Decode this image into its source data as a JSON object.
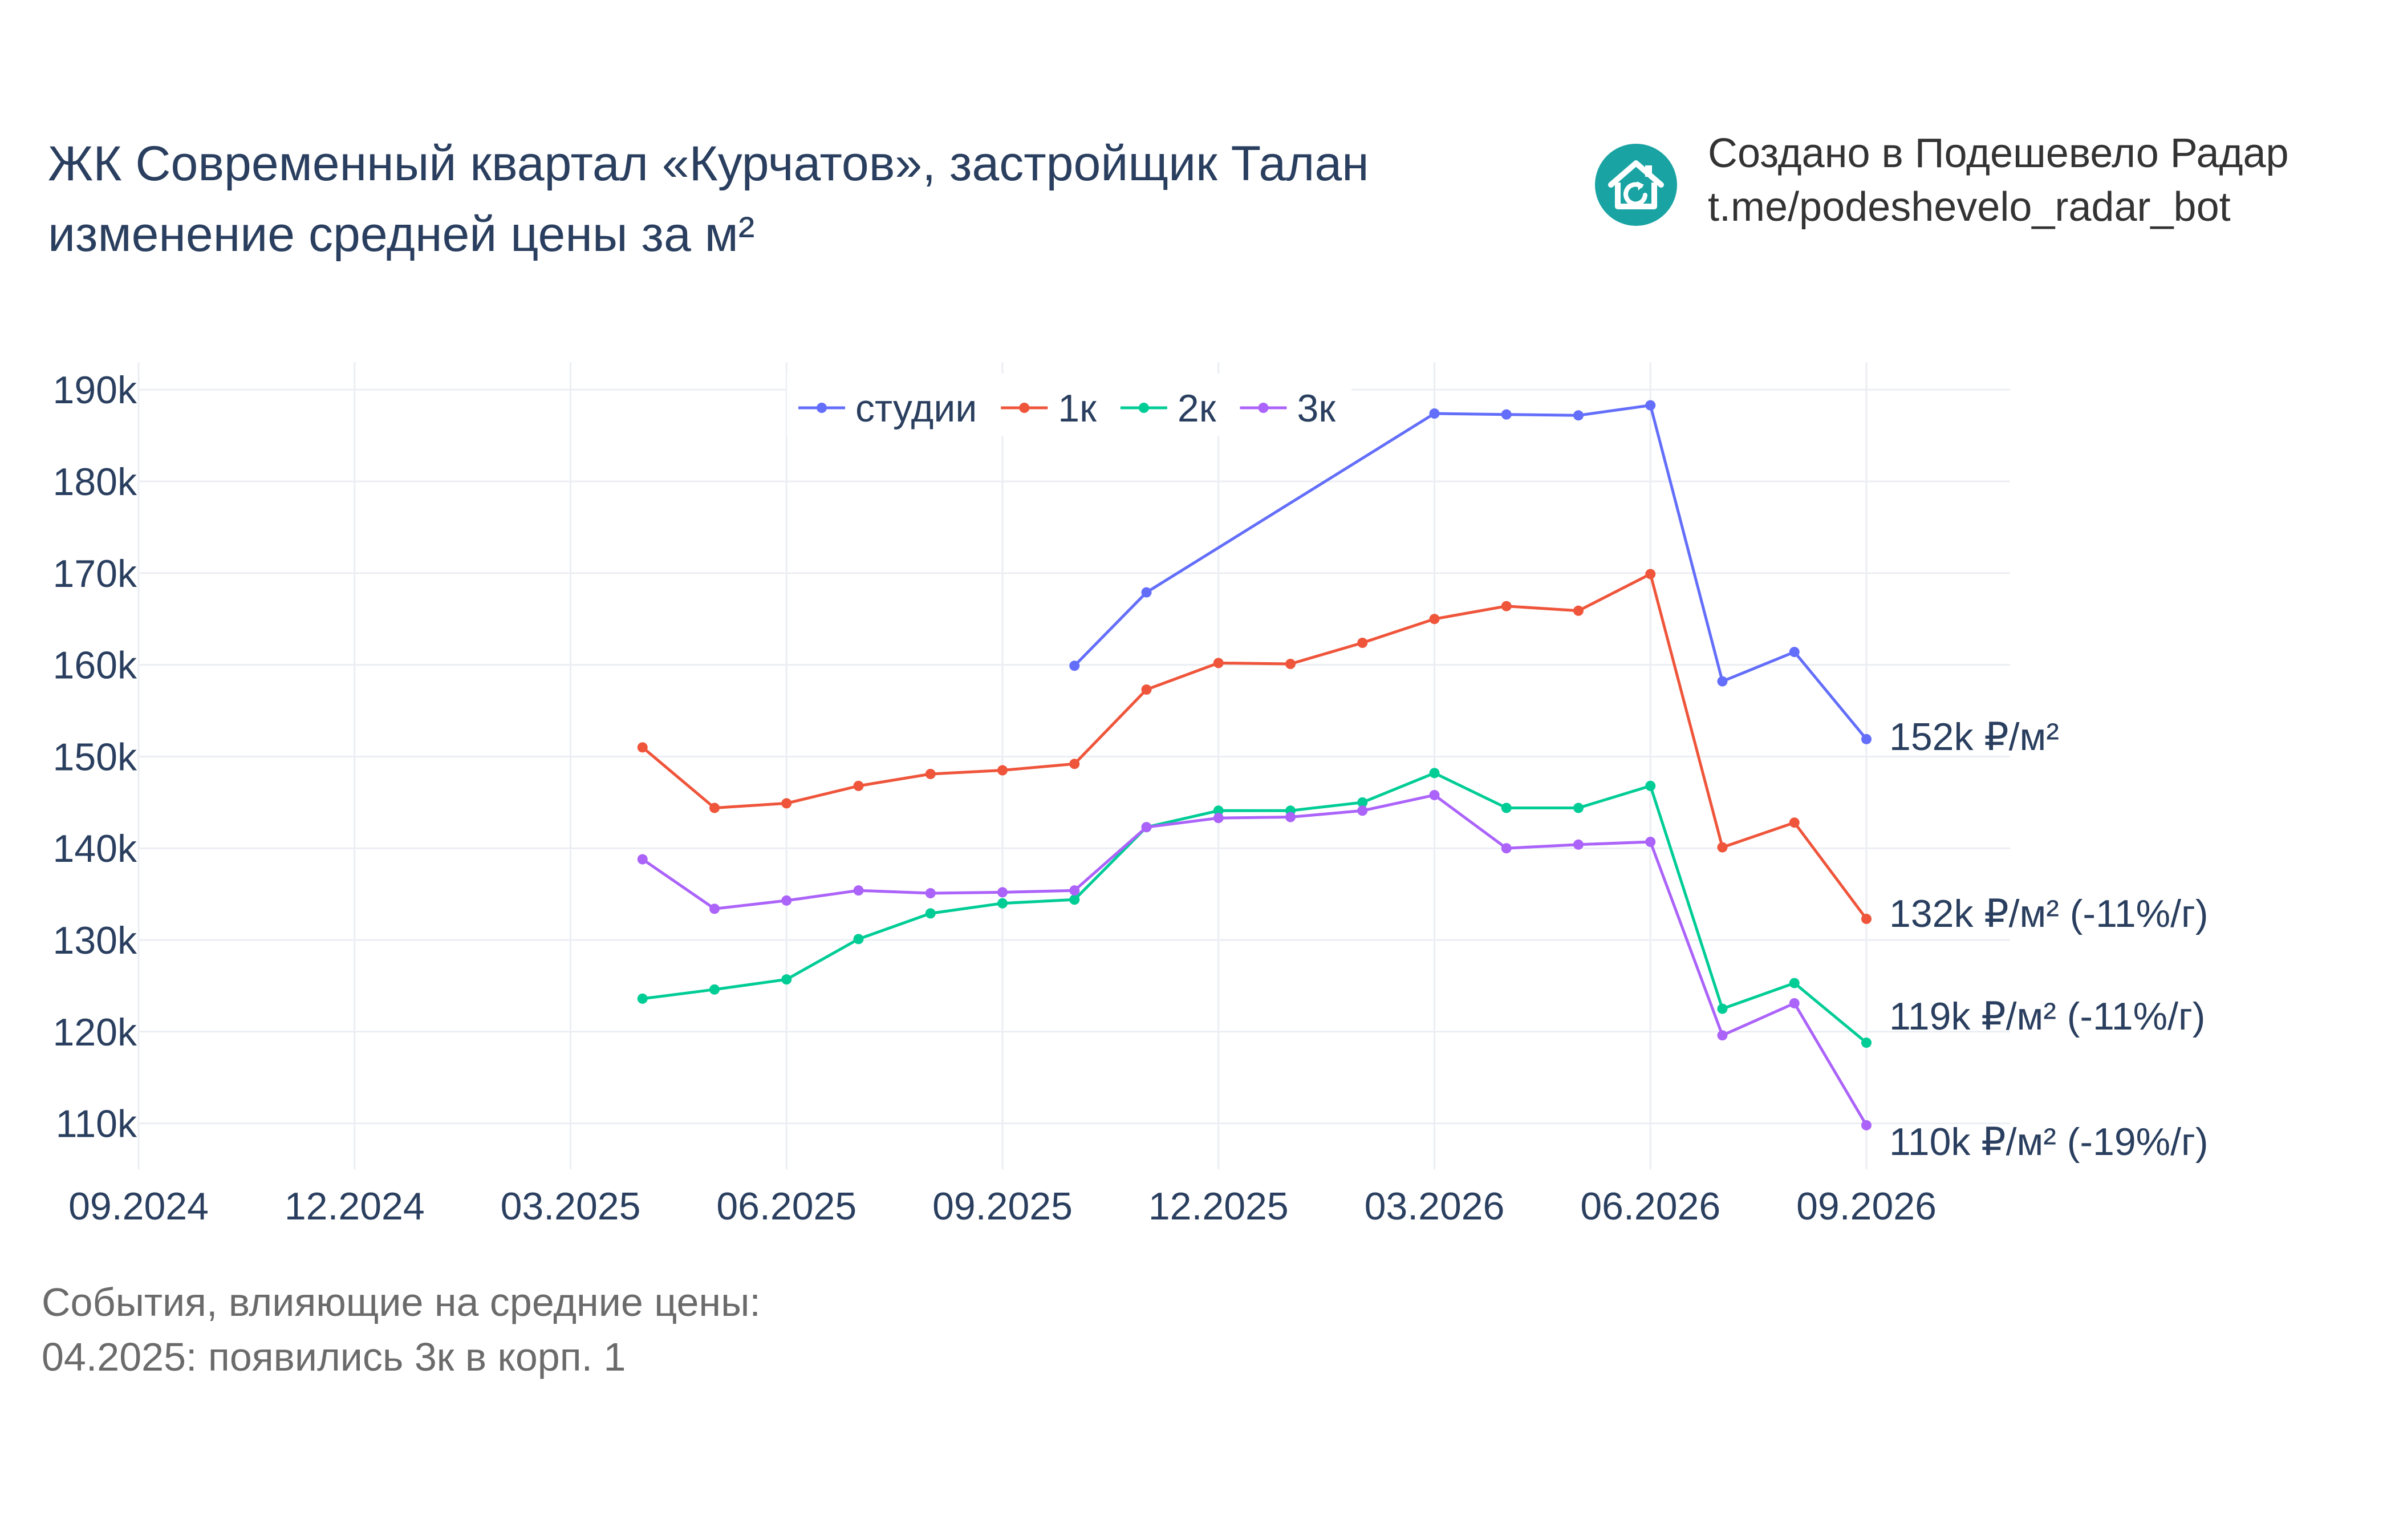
{
  "header": {
    "title_line1": "ЖК Современный квартал «Курчатов», застройщик Талан",
    "title_line2": "изменение средней цены за м²"
  },
  "brand": {
    "line1": "Создано в Подешевело Радар",
    "line2": "t.me/podeshevelo_radar_bot",
    "logo_icon": "house-refresh-icon",
    "logo_color": "#1aa3a3"
  },
  "notes": {
    "line1": "События, влияющие на средние цены:",
    "line2": "04.2025: появились 3к в корп. 1"
  },
  "chart_data": {
    "type": "line",
    "x_tick_labels": [
      "09.2024",
      "12.2024",
      "03.2025",
      "06.2025",
      "09.2025",
      "12.2025",
      "03.2026",
      "06.2026",
      "09.2026"
    ],
    "y_tick_labels": [
      "110k",
      "120k",
      "130k",
      "140k",
      "150k",
      "160k",
      "170k",
      "180k",
      "190k"
    ],
    "y_ticks": [
      110000,
      120000,
      130000,
      140000,
      150000,
      160000,
      170000,
      180000,
      190000
    ],
    "ylim": [
      105000,
      193000
    ],
    "xlim": [
      "2024-09",
      "2026-09"
    ],
    "grid": true,
    "legend_position": "top-center",
    "series": [
      {
        "name": "студии",
        "color": "#636efa",
        "end_label": "152k ₽/м²",
        "points": [
          {
            "x": "2025-10",
            "y": 159900
          },
          {
            "x": "2025-11",
            "y": 167900
          },
          {
            "x": "2026-03",
            "y": 187400
          },
          {
            "x": "2026-04",
            "y": 187300
          },
          {
            "x": "2026-05",
            "y": 187200
          },
          {
            "x": "2026-06",
            "y": 188300
          },
          {
            "x": "2026-07",
            "y": 158200
          },
          {
            "x": "2026-08",
            "y": 161400
          },
          {
            "x": "2026-09",
            "y": 151900
          }
        ]
      },
      {
        "name": "1к",
        "color": "#ef553b",
        "end_label": "132k ₽/м² (-11%/г)",
        "points": [
          {
            "x": "2025-04",
            "y": 151000
          },
          {
            "x": "2025-05",
            "y": 144400
          },
          {
            "x": "2025-06",
            "y": 144900
          },
          {
            "x": "2025-07",
            "y": 146800
          },
          {
            "x": "2025-08",
            "y": 148100
          },
          {
            "x": "2025-09",
            "y": 148500
          },
          {
            "x": "2025-10",
            "y": 149200
          },
          {
            "x": "2025-11",
            "y": 157300
          },
          {
            "x": "2025-12",
            "y": 160200
          },
          {
            "x": "2026-01",
            "y": 160100
          },
          {
            "x": "2026-02",
            "y": 162400
          },
          {
            "x": "2026-03",
            "y": 165000
          },
          {
            "x": "2026-04",
            "y": 166400
          },
          {
            "x": "2026-05",
            "y": 165900
          },
          {
            "x": "2026-06",
            "y": 169900
          },
          {
            "x": "2026-07",
            "y": 140100
          },
          {
            "x": "2026-08",
            "y": 142800
          },
          {
            "x": "2026-09",
            "y": 132300
          }
        ]
      },
      {
        "name": "2к",
        "color": "#00cc96",
        "end_label": "119k ₽/м² (-11%/г)",
        "points": [
          {
            "x": "2025-04",
            "y": 123600
          },
          {
            "x": "2025-05",
            "y": 124600
          },
          {
            "x": "2025-06",
            "y": 125700
          },
          {
            "x": "2025-07",
            "y": 130100
          },
          {
            "x": "2025-08",
            "y": 132900
          },
          {
            "x": "2025-09",
            "y": 134000
          },
          {
            "x": "2025-10",
            "y": 134400
          },
          {
            "x": "2025-11",
            "y": 142300
          },
          {
            "x": "2025-12",
            "y": 144100
          },
          {
            "x": "2026-01",
            "y": 144100
          },
          {
            "x": "2026-02",
            "y": 145000
          },
          {
            "x": "2026-03",
            "y": 148200
          },
          {
            "x": "2026-04",
            "y": 144400
          },
          {
            "x": "2026-05",
            "y": 144400
          },
          {
            "x": "2026-06",
            "y": 146800
          },
          {
            "x": "2026-07",
            "y": 122500
          },
          {
            "x": "2026-08",
            "y": 125300
          },
          {
            "x": "2026-09",
            "y": 118800
          }
        ]
      },
      {
        "name": "3к",
        "color": "#ab63fa",
        "end_label": "110k ₽/м² (-19%/г)",
        "points": [
          {
            "x": "2025-04",
            "y": 138800
          },
          {
            "x": "2025-05",
            "y": 133400
          },
          {
            "x": "2025-06",
            "y": 134300
          },
          {
            "x": "2025-07",
            "y": 135400
          },
          {
            "x": "2025-08",
            "y": 135100
          },
          {
            "x": "2025-09",
            "y": 135200
          },
          {
            "x": "2025-10",
            "y": 135400
          },
          {
            "x": "2025-11",
            "y": 142300
          },
          {
            "x": "2025-12",
            "y": 143300
          },
          {
            "x": "2026-01",
            "y": 143400
          },
          {
            "x": "2026-02",
            "y": 144100
          },
          {
            "x": "2026-03",
            "y": 145800
          },
          {
            "x": "2026-04",
            "y": 140000
          },
          {
            "x": "2026-05",
            "y": 140400
          },
          {
            "x": "2026-06",
            "y": 140700
          },
          {
            "x": "2026-07",
            "y": 119600
          },
          {
            "x": "2026-08",
            "y": 123100
          },
          {
            "x": "2026-09",
            "y": 109800
          }
        ]
      }
    ]
  }
}
